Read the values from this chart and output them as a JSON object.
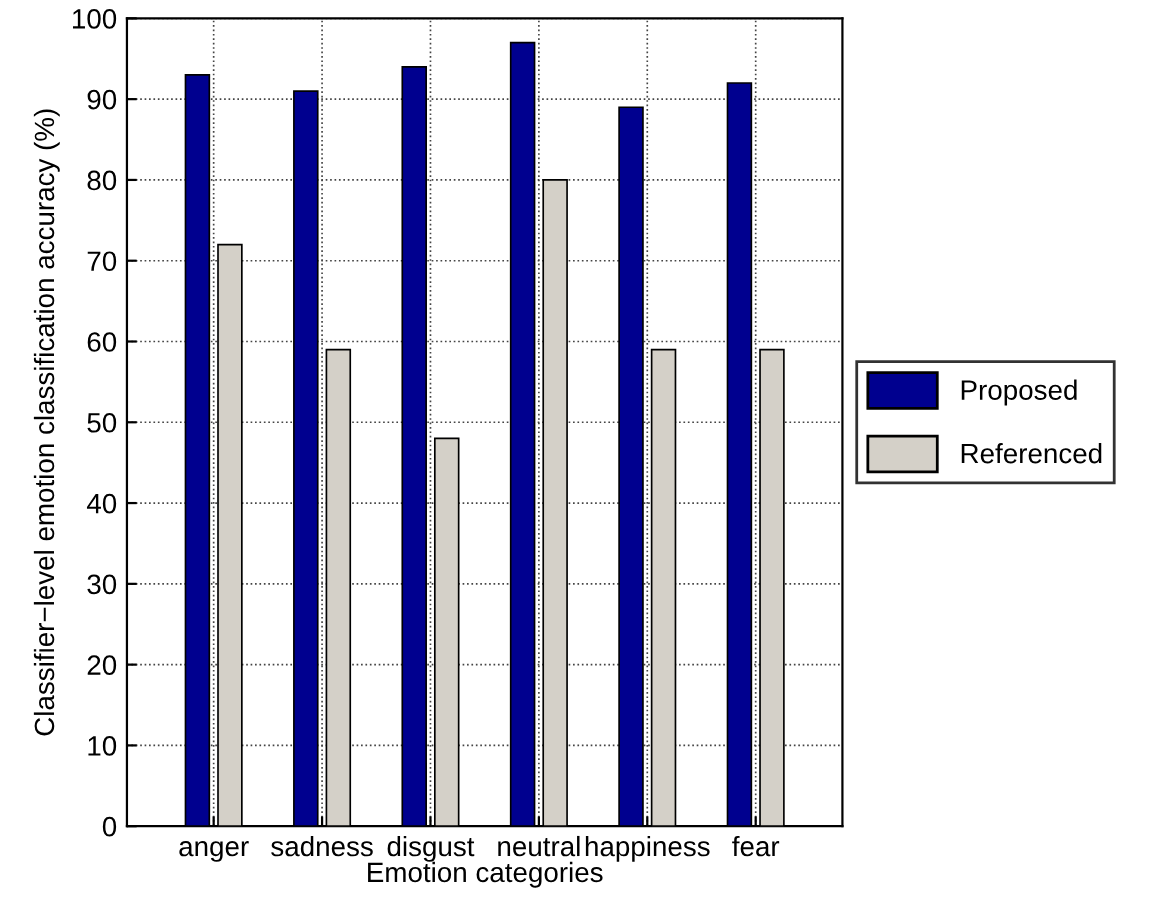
{
  "chart_data": {
    "type": "bar",
    "xlabel": "Emotion categories",
    "ylabel": "Classifier−level emotion classification accuracy (%)",
    "categories": [
      "anger",
      "sadness",
      "disgust",
      "neutral",
      "happiness",
      "fear"
    ],
    "series": [
      {
        "name": "Proposed",
        "color": "#00008f",
        "values": [
          93,
          91,
          94,
          97,
          89,
          92
        ]
      },
      {
        "name": "Referenced",
        "color": "#d4d0c8",
        "values": [
          72,
          59,
          48,
          80,
          59,
          59
        ]
      }
    ],
    "ylim": [
      0,
      100
    ],
    "yticks": [
      0,
      10,
      20,
      30,
      40,
      50,
      60,
      70,
      80,
      90,
      100
    ],
    "grid": true,
    "legend": "right"
  }
}
